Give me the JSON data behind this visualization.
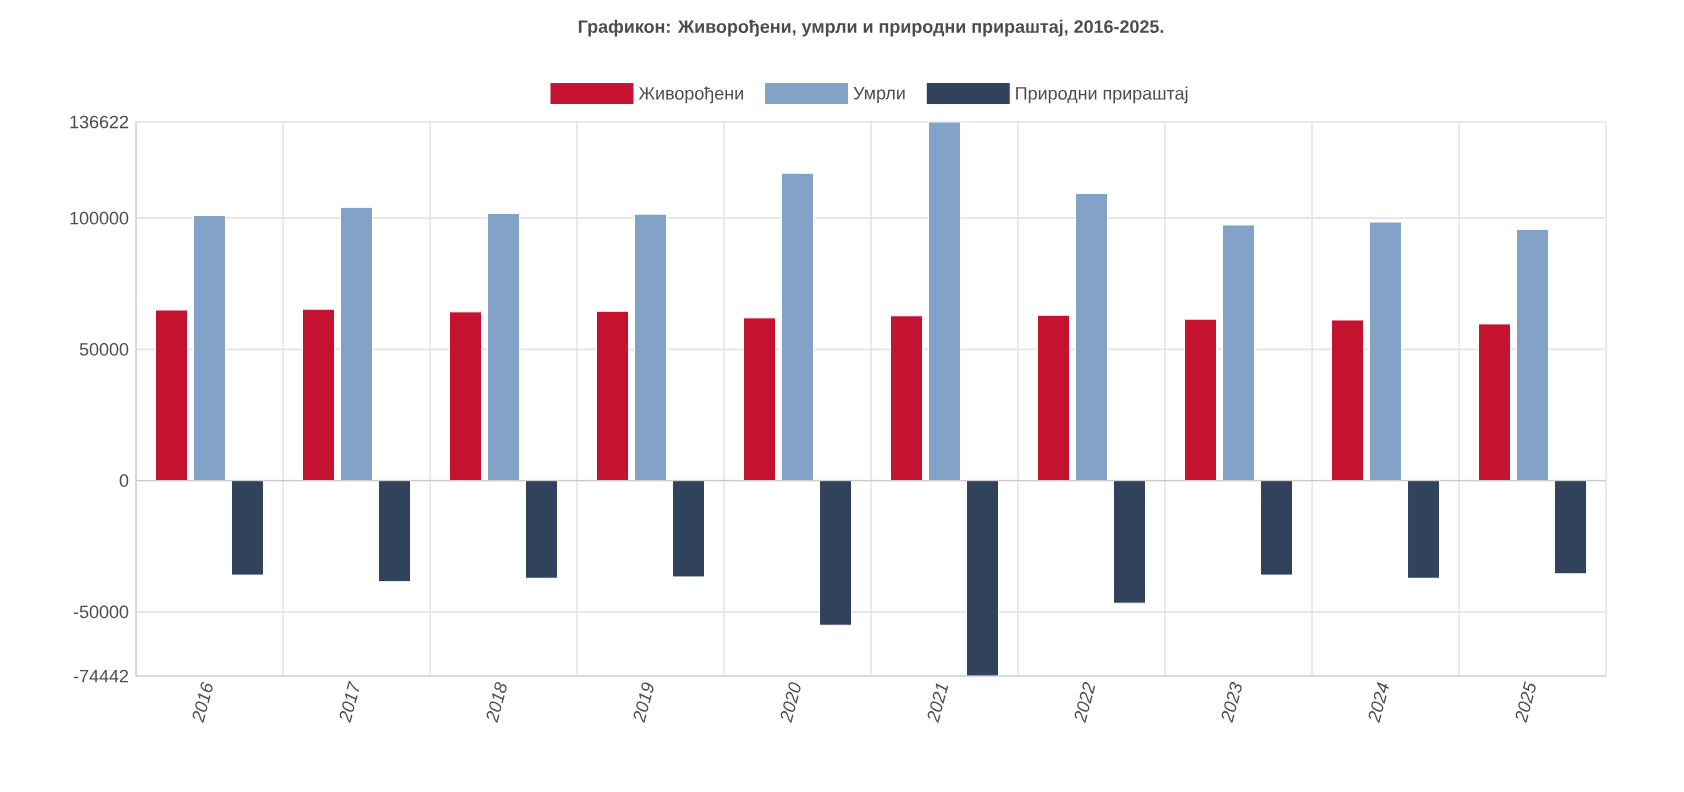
{
  "chart_data": {
    "type": "bar",
    "title": "Графикон: Живорођени, умрли и природни прираштај, 2016-2025.",
    "categories": [
      "2016",
      "2017",
      "2018",
      "2019",
      "2020",
      "2021",
      "2022",
      "2023",
      "2024",
      "2025"
    ],
    "series": [
      {
        "name": "Живорођени",
        "color": "#c41230",
        "values": [
          65000,
          65300,
          64300,
          64500,
          62000,
          62800,
          63000,
          61500,
          61200,
          59700
        ]
      },
      {
        "name": "Умрли",
        "color": "#82a2c8",
        "values": [
          101000,
          104100,
          101800,
          101500,
          117100,
          136622,
          109400,
          97400,
          98500,
          95700
        ]
      },
      {
        "name": "Природни прираштај",
        "color": "#30425c",
        "values": [
          -36000,
          -38500,
          -37200,
          -36700,
          -55100,
          -74442,
          -46700,
          -36000,
          -37200,
          -35500
        ]
      }
    ],
    "ylim": [
      -74442,
      136622
    ],
    "yticks": [
      -74442,
      -50000,
      0,
      50000,
      100000,
      136622
    ],
    "grid": true,
    "legend": "top"
  }
}
